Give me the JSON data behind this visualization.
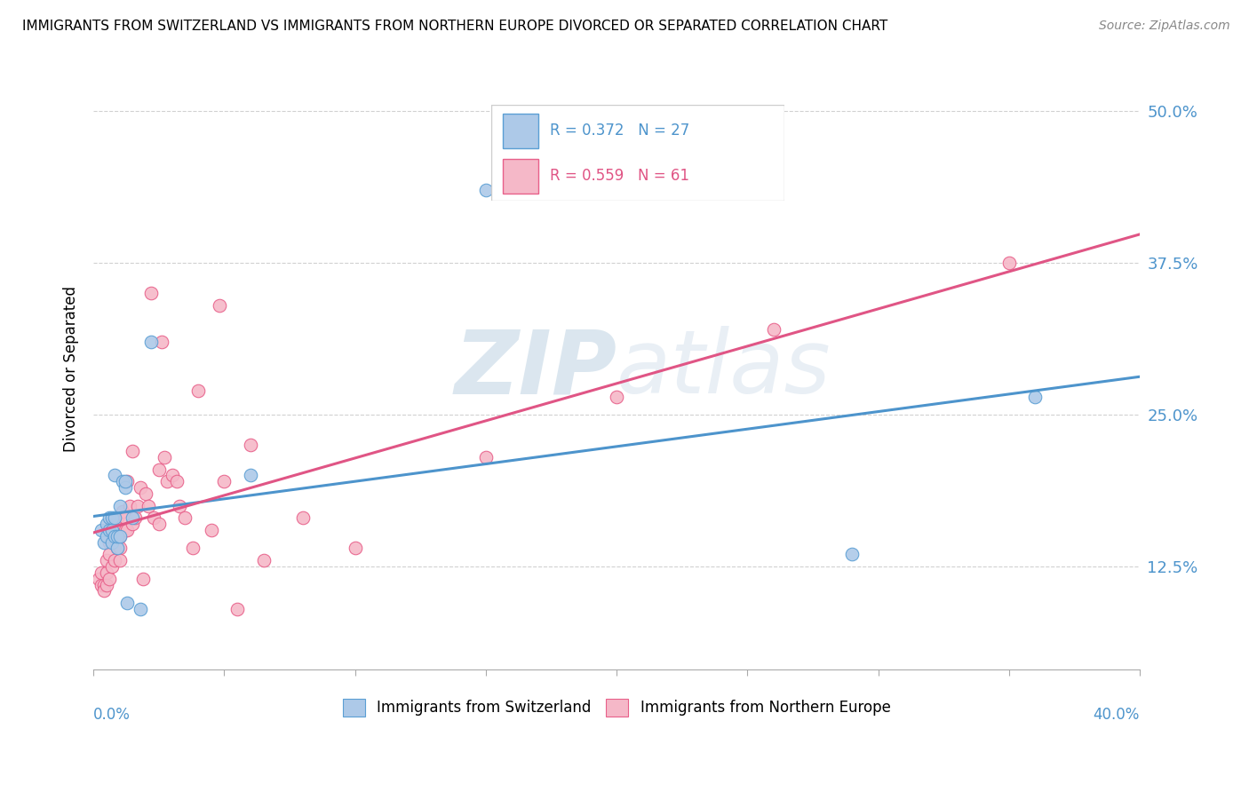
{
  "title": "IMMIGRANTS FROM SWITZERLAND VS IMMIGRANTS FROM NORTHERN EUROPE DIVORCED OR SEPARATED CORRELATION CHART",
  "source": "Source: ZipAtlas.com",
  "ylabel": "Divorced or Separated",
  "ytick_labels": [
    "12.5%",
    "25.0%",
    "37.5%",
    "50.0%"
  ],
  "ytick_values": [
    0.125,
    0.25,
    0.375,
    0.5
  ],
  "xlim": [
    0.0,
    0.4
  ],
  "ylim": [
    0.04,
    0.535
  ],
  "legend1_r": "0.372",
  "legend1_n": "27",
  "legend2_r": "0.559",
  "legend2_n": "61",
  "color_swiss_fill": "#adc9e8",
  "color_swiss_edge": "#5b9fd4",
  "color_north_fill": "#f5b8c8",
  "color_north_edge": "#e8608a",
  "line_color_swiss": "#4d94cc",
  "line_color_north": "#e05585",
  "watermark_color": "#d0dce8",
  "swiss_x": [
    0.003,
    0.004,
    0.005,
    0.005,
    0.006,
    0.006,
    0.007,
    0.007,
    0.007,
    0.008,
    0.008,
    0.008,
    0.009,
    0.009,
    0.01,
    0.01,
    0.011,
    0.012,
    0.012,
    0.013,
    0.015,
    0.018,
    0.022,
    0.06,
    0.15,
    0.29,
    0.36
  ],
  "swiss_y": [
    0.155,
    0.145,
    0.15,
    0.16,
    0.155,
    0.165,
    0.145,
    0.155,
    0.165,
    0.15,
    0.165,
    0.2,
    0.14,
    0.15,
    0.15,
    0.175,
    0.195,
    0.19,
    0.195,
    0.095,
    0.165,
    0.09,
    0.31,
    0.2,
    0.435,
    0.135,
    0.265
  ],
  "north_x": [
    0.002,
    0.003,
    0.003,
    0.004,
    0.004,
    0.005,
    0.005,
    0.005,
    0.006,
    0.006,
    0.006,
    0.007,
    0.007,
    0.007,
    0.008,
    0.008,
    0.009,
    0.009,
    0.009,
    0.01,
    0.01,
    0.01,
    0.011,
    0.012,
    0.012,
    0.013,
    0.013,
    0.014,
    0.015,
    0.015,
    0.016,
    0.017,
    0.018,
    0.019,
    0.02,
    0.021,
    0.022,
    0.023,
    0.025,
    0.025,
    0.026,
    0.027,
    0.028,
    0.03,
    0.032,
    0.033,
    0.035,
    0.038,
    0.04,
    0.045,
    0.048,
    0.05,
    0.055,
    0.06,
    0.065,
    0.08,
    0.1,
    0.15,
    0.2,
    0.26,
    0.35
  ],
  "north_y": [
    0.115,
    0.11,
    0.12,
    0.11,
    0.105,
    0.12,
    0.13,
    0.11,
    0.145,
    0.135,
    0.115,
    0.155,
    0.16,
    0.125,
    0.13,
    0.155,
    0.155,
    0.165,
    0.14,
    0.15,
    0.14,
    0.13,
    0.17,
    0.165,
    0.155,
    0.195,
    0.155,
    0.175,
    0.16,
    0.22,
    0.165,
    0.175,
    0.19,
    0.115,
    0.185,
    0.175,
    0.35,
    0.165,
    0.16,
    0.205,
    0.31,
    0.215,
    0.195,
    0.2,
    0.195,
    0.175,
    0.165,
    0.14,
    0.27,
    0.155,
    0.34,
    0.195,
    0.09,
    0.225,
    0.13,
    0.165,
    0.14,
    0.215,
    0.265,
    0.32,
    0.375
  ]
}
